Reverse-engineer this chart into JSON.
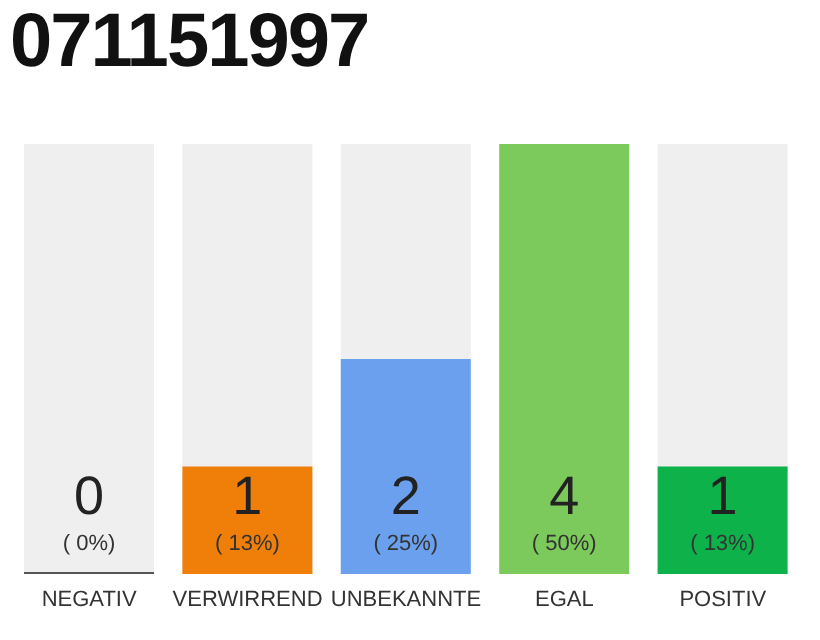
{
  "chart_data": {
    "type": "bar",
    "title": "071151997",
    "categories": [
      "NEGATIV",
      "VERWIRREND",
      "UNBEKANNTE",
      "EGAL",
      "POSITIV"
    ],
    "values": [
      0,
      1,
      2,
      4,
      1
    ],
    "value_labels": [
      "0",
      "1",
      "2",
      "4",
      "1"
    ],
    "colors": [
      "#555555",
      "#f07f0a",
      "#6aa0ee",
      "#7dca5c",
      "#0db24a"
    ],
    "annotations": [
      "( 0%)",
      "( 13%)",
      "( 25%)",
      "( 50%)",
      "( 13%)"
    ],
    "tick_labels": "x"
  }
}
